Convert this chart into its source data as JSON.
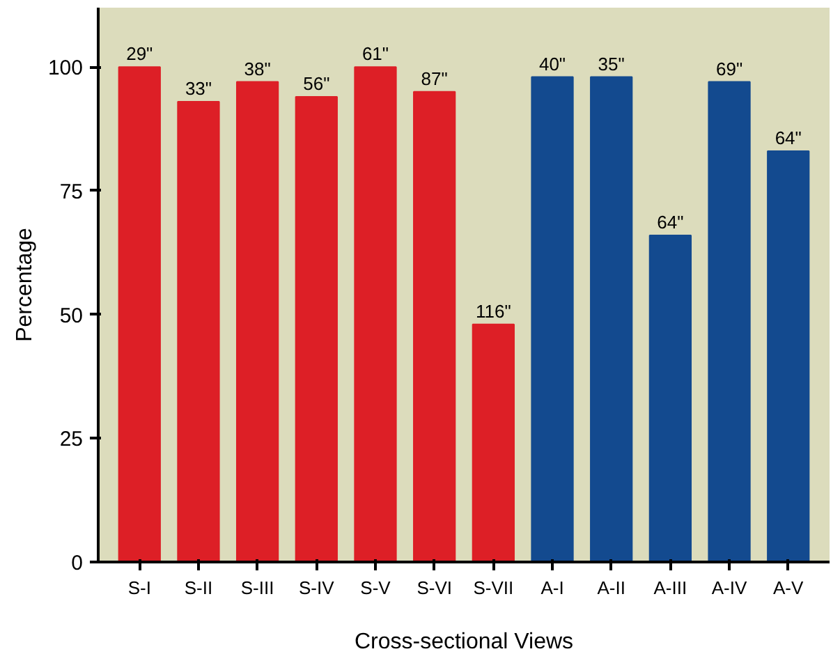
{
  "chart_data": {
    "type": "bar",
    "xlabel": "Cross-sectional Views",
    "ylabel": "Percentage",
    "categories": [
      "S-I",
      "S-II",
      "S-III",
      "S-IV",
      "S-V",
      "S-VI",
      "S-VII",
      "A-I",
      "A-II",
      "A-III",
      "A-IV",
      "A-V"
    ],
    "values": [
      100,
      93,
      97,
      94,
      100,
      95,
      48,
      98,
      98,
      66,
      97,
      83
    ],
    "colors": [
      "#dd1f26",
      "#dd1f26",
      "#dd1f26",
      "#dd1f26",
      "#dd1f26",
      "#dd1f26",
      "#dd1f26",
      "#134a8f",
      "#134a8f",
      "#134a8f",
      "#134a8f",
      "#134a8f"
    ],
    "annotations": [
      {
        "text": "29\"",
        "x": "S-I",
        "y": 100
      },
      {
        "text": "33\"",
        "x": "S-II",
        "y": 93
      },
      {
        "text": "38\"",
        "x": "S-III",
        "y": 97
      },
      {
        "text": "56\"",
        "x": "S-IV",
        "y": 94
      },
      {
        "text": "61\"",
        "x": "S-V",
        "y": 100
      },
      {
        "text": "87\"",
        "x": "S-VI",
        "y": 95
      },
      {
        "text": "116\"",
        "x": "S-VII",
        "y": 48
      },
      {
        "text": "40\"",
        "x": "A-I",
        "y": 98
      },
      {
        "text": "35\"",
        "x": "A-II",
        "y": 98
      },
      {
        "text": "64\"",
        "x": "A-III",
        "y": 66
      },
      {
        "text": "69\"",
        "x": "A-IV",
        "y": 97
      },
      {
        "text": "64\"",
        "x": "A-V",
        "y": 83
      }
    ],
    "ylim": [
      0,
      112
    ],
    "yticks": [
      0,
      25,
      50,
      75,
      100
    ],
    "grid": false
  }
}
